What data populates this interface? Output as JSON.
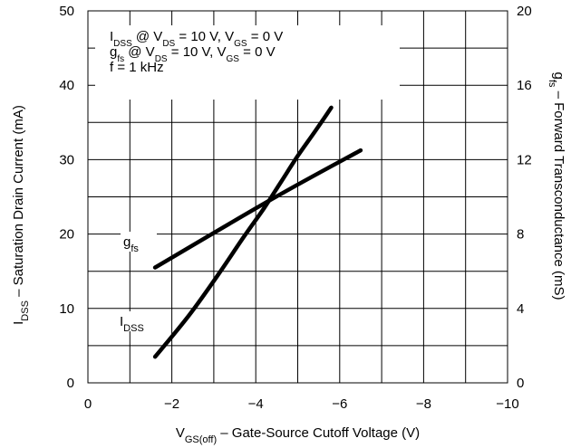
{
  "chart_data": {
    "type": "line",
    "x": {
      "ticks": [
        "0",
        "−2",
        "−4",
        "−6",
        "−8",
        "−10"
      ],
      "tick_values": [
        0,
        -2,
        -4,
        -6,
        -8,
        -10
      ],
      "range": [
        0,
        -10
      ]
    },
    "y_left": {
      "ticks": [
        "0",
        "10",
        "20",
        "30",
        "40",
        "50"
      ],
      "tick_values": [
        0,
        10,
        20,
        30,
        40,
        50
      ],
      "range": [
        0,
        50
      ]
    },
    "y_right": {
      "ticks": [
        "0",
        "4",
        "8",
        "12",
        "16",
        "20"
      ],
      "tick_values": [
        0,
        4,
        8,
        12,
        16,
        20
      ],
      "range": [
        0,
        20
      ]
    },
    "xlabel": {
      "main": "V",
      "sub": "GS(off)",
      "rest": " – Gate-Source Cutoff Voltage (V)"
    },
    "ylabel_left": {
      "main": "I",
      "sub": "DSS",
      "rest": " – Saturation Drain Current (mA)"
    },
    "ylabel_right": {
      "main": "g",
      "sub": "fs",
      "rest": " – Forward Transconductance (mS)"
    },
    "conditions": [
      {
        "parts": [
          [
            "I",
            ""
          ],
          [
            "DSS",
            "sub"
          ],
          [
            " @ V",
            ""
          ],
          [
            "DS",
            "sub"
          ],
          [
            " = 10 V, V",
            ""
          ],
          [
            "GS",
            "sub"
          ],
          [
            " = 0 V",
            ""
          ]
        ]
      },
      {
        "parts": [
          [
            "g",
            ""
          ],
          [
            "fs",
            "sub"
          ],
          [
            " @ V",
            ""
          ],
          [
            "DS",
            "sub"
          ],
          [
            " = 10 V, V",
            ""
          ],
          [
            "GS",
            "sub"
          ],
          [
            " = 0 V",
            ""
          ]
        ]
      },
      {
        "parts": [
          [
            "f = 1 kHz",
            ""
          ]
        ]
      }
    ],
    "series": [
      {
        "label": {
          "main": "g",
          "sub": "fs"
        },
        "axis": "right",
        "x": [
          -1.6,
          -4.4,
          -6.5
        ],
        "y": [
          6.2,
          9.9,
          12.5
        ]
      },
      {
        "label": {
          "main": "I",
          "sub": "DSS"
        },
        "axis": "left",
        "x": [
          -1.6,
          -2.4,
          -3.1,
          -3.7,
          -4.2,
          -4.6,
          -5.0,
          -5.4,
          -5.8
        ],
        "y": [
          3.5,
          9.0,
          14.5,
          19.5,
          23.5,
          27.0,
          30.5,
          33.7,
          37.0
        ]
      }
    ],
    "grid": true,
    "legend": "none"
  }
}
